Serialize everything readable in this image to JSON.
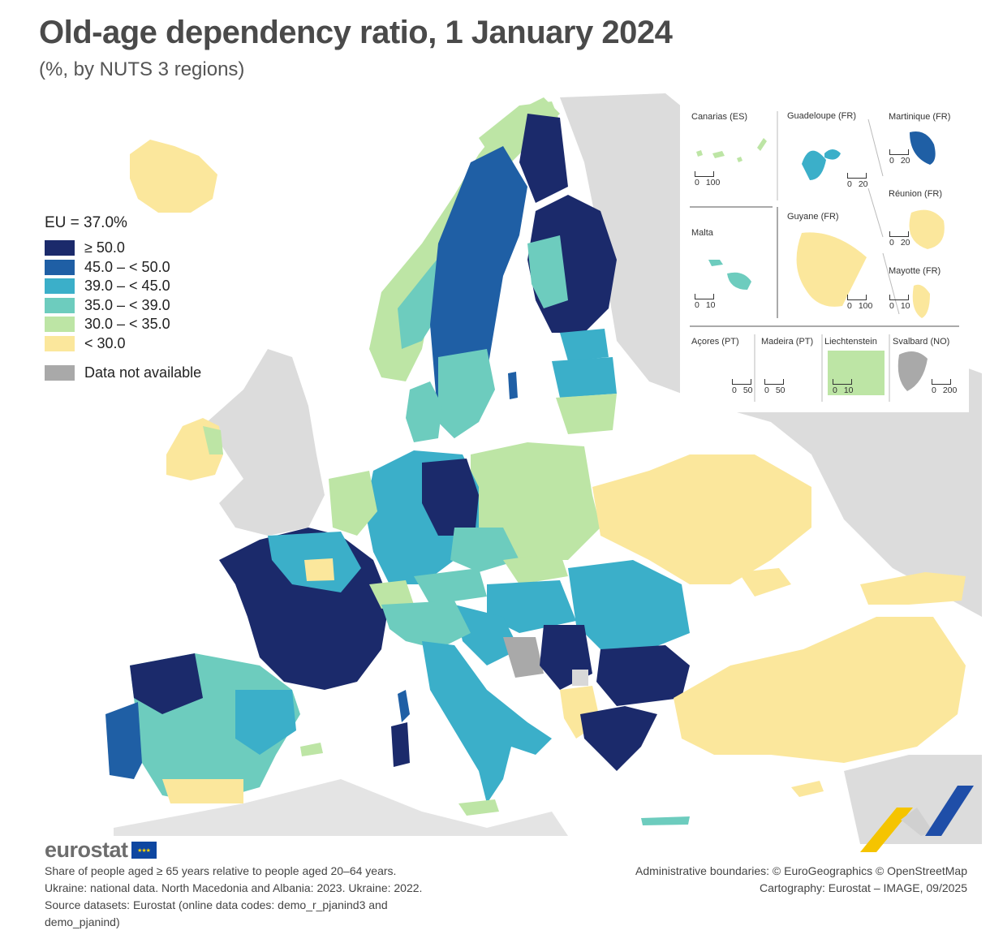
{
  "header": {
    "title": "Old-age dependency ratio, 1 January 2024",
    "subtitle": "(%, by NUTS 3 regions)"
  },
  "legend": {
    "eu_average": "EU = 37.0%",
    "classes": [
      {
        "label": "≥ 50.0",
        "color": "#1b2a6b"
      },
      {
        "label": "45.0 – < 50.0",
        "color": "#1f5fa5"
      },
      {
        "label": "39.0 – < 45.0",
        "color": "#3bafc9"
      },
      {
        "label": "35.0 – < 39.0",
        "color": "#6dccbe"
      },
      {
        "label": "30.0 – < 35.0",
        "color": "#bde5a5"
      },
      {
        "label": "< 30.0",
        "color": "#fbe79c"
      }
    ],
    "not_available": {
      "label": "Data not available",
      "color": "#a9a9a9"
    }
  },
  "insets": [
    {
      "name": "Canarias (ES)",
      "scale": [
        "0",
        "100"
      ]
    },
    {
      "name": "Guadeloupe (FR)",
      "scale": [
        "0",
        "20"
      ]
    },
    {
      "name": "Martinique (FR)",
      "scale": [
        "0",
        "20"
      ]
    },
    {
      "name": "Réunion (FR)",
      "scale": [
        "0",
        "20"
      ]
    },
    {
      "name": "Malta",
      "scale": [
        "0",
        "10"
      ]
    },
    {
      "name": "Guyane (FR)",
      "scale": [
        "0",
        "100"
      ]
    },
    {
      "name": "Mayotte (FR)",
      "scale": [
        "0",
        "10"
      ]
    },
    {
      "name": "Açores (PT)",
      "scale": [
        "0",
        "50"
      ]
    },
    {
      "name": "Madeira (PT)",
      "scale": [
        "0",
        "50"
      ]
    },
    {
      "name": "Liechtenstein",
      "scale": [
        "0",
        "10"
      ]
    },
    {
      "name": "Svalbard (NO)",
      "scale": [
        "0",
        "200"
      ]
    }
  ],
  "footer": {
    "logo_text": "eurostat",
    "notes": [
      "Share of people aged ≥ 65 years relative to people aged 20–64 years.",
      "Ukraine: national data. North Macedonia and Albania: 2023. Ukraine: 2022.",
      "Source datasets: Eurostat (online data codes: demo_r_pjanind3 and demo_pjanind)"
    ],
    "credits": [
      "Administrative boundaries: © EuroGeographics © OpenStreetMap",
      "Cartography: Eurostat – IMAGE, 09/2025"
    ]
  }
}
